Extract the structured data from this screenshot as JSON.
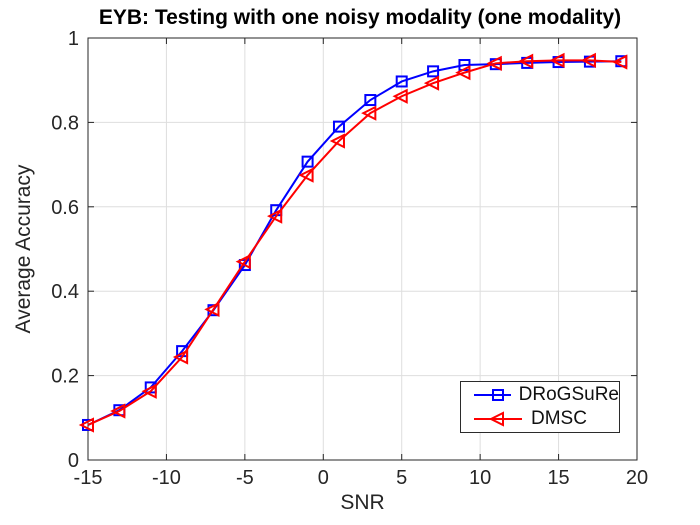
{
  "chart_data": {
    "type": "line",
    "title": "EYB: Testing with one noisy modality (one modality)",
    "xlabel": "SNR",
    "ylabel": "Average Accuracy",
    "xlim": [
      -15,
      20
    ],
    "ylim": [
      0,
      1
    ],
    "grid": true,
    "legend_position": "lower-right",
    "x": [
      -15,
      -13,
      -11,
      -9,
      -7,
      -5,
      -3,
      -1,
      1,
      3,
      5,
      7,
      9,
      11,
      13,
      15,
      17,
      19
    ],
    "series": [
      {
        "name": "DRoGSuRe",
        "color": "#0000FF",
        "marker": "square",
        "values": [
          0.083,
          0.118,
          0.172,
          0.258,
          0.355,
          0.462,
          0.592,
          0.707,
          0.79,
          0.853,
          0.897,
          0.921,
          0.936,
          0.938,
          0.941,
          0.943,
          0.944,
          0.945
        ]
      },
      {
        "name": "DMSC",
        "color": "#FF0000",
        "marker": "triangle-left",
        "values": [
          0.083,
          0.116,
          0.163,
          0.244,
          0.357,
          0.47,
          0.578,
          0.675,
          0.756,
          0.822,
          0.862,
          0.893,
          0.918,
          0.94,
          0.945,
          0.947,
          0.947,
          0.943
        ]
      }
    ],
    "xticks": {
      "values": [
        -15,
        -10,
        -5,
        0,
        5,
        10,
        15,
        20
      ],
      "labels": [
        "-15",
        "-10",
        "-5",
        "0",
        "5",
        "10",
        "15",
        "20"
      ]
    },
    "yticks": {
      "values": [
        0,
        0.2,
        0.4,
        0.6,
        0.8,
        1
      ],
      "labels": [
        "0",
        "0.2",
        "0.4",
        "0.6",
        "0.8",
        "1"
      ]
    },
    "colors": {
      "axis": "#262626",
      "grid": "#DEDEDE",
      "tick_label": "#262626",
      "title": "#000000",
      "legend_border": "#2B2B2B",
      "background": "#FFFFFF"
    }
  }
}
